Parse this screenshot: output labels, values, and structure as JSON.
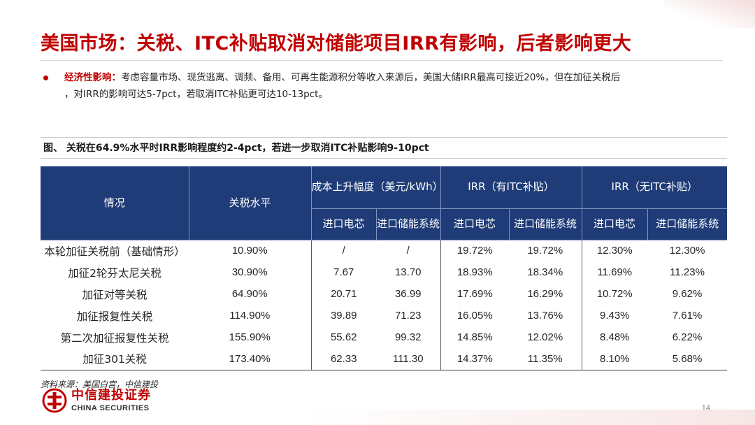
{
  "slide": {
    "title": "美国市场：关税、ITC补贴取消对储能项目IRR有影响，后者影响更大",
    "bullet_label": "经济性影响：",
    "bullet_line1": "考虑容量市场、现货逃离、调频、备用、可再生能源积分等收入来源后，美国大储IRR最高可接近20%，但在加征关税后",
    "bullet_line2": "，对IRR的影响可达5-7pct，若取消ITC补贴更可达10-13pct。",
    "figure_caption": "图、 关税在64.9%水平时IRR影响程度约2-4pct，若进一步取消ITC补贴影响9-10pct",
    "source": "资料来源：美国白宫，中信建投",
    "page_number": "14"
  },
  "table": {
    "headers": {
      "scenario": "情况",
      "tariff": "关税水平",
      "cost_group": "成本上升幅度（美元/kWh）",
      "irr_itc_group": "IRR（有ITC补贴）",
      "irr_noitc_group": "IRR（无ITC补贴）",
      "sub_cell": "进口电芯",
      "sub_system": "进口储能系统"
    },
    "rows": [
      {
        "scenario": "本轮加征关税前（基础情形）",
        "tariff": "10.90%",
        "cost_cell": "/",
        "cost_system": "/",
        "irr_itc_cell": "19.72%",
        "irr_itc_system": "19.72%",
        "irr_noitc_cell": "12.30%",
        "irr_noitc_system": "12.30%"
      },
      {
        "scenario": "加征2轮芬太尼关税",
        "tariff": "30.90%",
        "cost_cell": "7.67",
        "cost_system": "13.70",
        "irr_itc_cell": "18.93%",
        "irr_itc_system": "18.34%",
        "irr_noitc_cell": "11.69%",
        "irr_noitc_system": "11.23%"
      },
      {
        "scenario": "加征对等关税",
        "tariff": "64.90%",
        "cost_cell": "20.71",
        "cost_system": "36.99",
        "irr_itc_cell": "17.69%",
        "irr_itc_system": "16.29%",
        "irr_noitc_cell": "10.72%",
        "irr_noitc_system": "9.62%"
      },
      {
        "scenario": "加征报复性关税",
        "tariff": "114.90%",
        "cost_cell": "39.89",
        "cost_system": "71.23",
        "irr_itc_cell": "16.05%",
        "irr_itc_system": "13.76%",
        "irr_noitc_cell": "9.43%",
        "irr_noitc_system": "7.61%"
      },
      {
        "scenario": "第二次加征报复性关税",
        "tariff": "155.90%",
        "cost_cell": "55.62",
        "cost_system": "99.32",
        "irr_itc_cell": "14.85%",
        "irr_itc_system": "12.02%",
        "irr_noitc_cell": "8.48%",
        "irr_noitc_system": "6.22%"
      },
      {
        "scenario": "加征301关税",
        "tariff": "173.40%",
        "cost_cell": "62.33",
        "cost_system": "111.30",
        "irr_itc_cell": "14.37%",
        "irr_itc_system": "11.35%",
        "irr_noitc_cell": "8.10%",
        "irr_noitc_system": "5.68%"
      }
    ]
  },
  "logo": {
    "name_cn": "中信建投证券",
    "name_en": "CHINA SECURITIES",
    "icon": "china-securities-logo-icon"
  },
  "colors": {
    "accent_red": "#c00000",
    "header_blue": "#1f3c78"
  }
}
